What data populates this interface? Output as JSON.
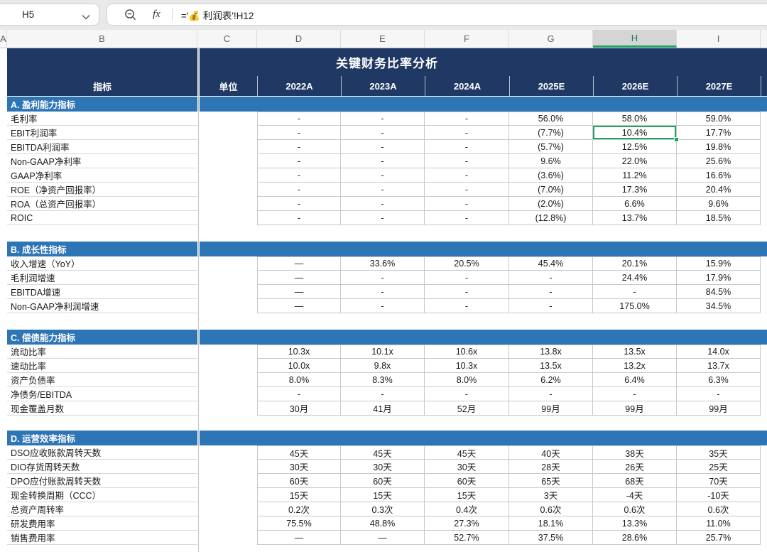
{
  "toolbar": {
    "cell_reference": "H5",
    "fx_label": "fx",
    "formula": "='💰 利润表'!H12"
  },
  "sheet": {
    "column_letters": [
      "A",
      "B",
      "C",
      "D",
      "E",
      "F",
      "G",
      "H",
      "I"
    ],
    "selected_column": "H",
    "title": "关键财务比率分析",
    "header": [
      "指标",
      "单位",
      "2022A",
      "2023A",
      "2024A",
      "2025E",
      "2026E",
      "2027E"
    ],
    "sections": [
      {
        "name": "A. 盈利能力指标",
        "rows": [
          {
            "label": "毛利率",
            "values": [
              "-",
              "-",
              "-",
              "56.0%",
              "58.0%",
              "59.0%"
            ]
          },
          {
            "label": "EBIT利润率",
            "values": [
              "-",
              "-",
              "-",
              "(7.7%)",
              "10.4%",
              "17.7%"
            ]
          },
          {
            "label": "EBITDA利润率",
            "values": [
              "-",
              "-",
              "-",
              "(5.7%)",
              "12.5%",
              "19.8%"
            ]
          },
          {
            "label": "Non-GAAP净利率",
            "values": [
              "-",
              "-",
              "-",
              "9.6%",
              "22.0%",
              "25.6%"
            ]
          },
          {
            "label": "GAAP净利率",
            "values": [
              "-",
              "-",
              "-",
              "(3.6%)",
              "11.2%",
              "16.6%"
            ]
          },
          {
            "label": "ROE（净资产回报率）",
            "values": [
              "-",
              "-",
              "-",
              "(7.0%)",
              "17.3%",
              "20.4%"
            ]
          },
          {
            "label": "ROA（总资产回报率）",
            "values": [
              "-",
              "-",
              "-",
              "(2.0%)",
              "6.6%",
              "9.6%"
            ]
          },
          {
            "label": "ROIC",
            "values": [
              "-",
              "-",
              "-",
              "(12.8%)",
              "13.7%",
              "18.5%"
            ]
          }
        ]
      },
      {
        "name": "B. 成长性指标",
        "rows": [
          {
            "label": "收入增速（YoY）",
            "values": [
              "—",
              "33.6%",
              "20.5%",
              "45.4%",
              "20.1%",
              "15.9%"
            ]
          },
          {
            "label": "毛利润增速",
            "values": [
              "—",
              "-",
              "-",
              "-",
              "24.4%",
              "17.9%"
            ]
          },
          {
            "label": "EBITDA增速",
            "values": [
              "—",
              "-",
              "-",
              "-",
              "-",
              "84.5%"
            ]
          },
          {
            "label": "Non-GAAP净利润增速",
            "values": [
              "—",
              "-",
              "-",
              "-",
              "175.0%",
              "34.5%"
            ]
          }
        ]
      },
      {
        "name": "C. 偿债能力指标",
        "rows": [
          {
            "label": "流动比率",
            "values": [
              "10.3x",
              "10.1x",
              "10.6x",
              "13.8x",
              "13.5x",
              "14.0x"
            ]
          },
          {
            "label": "速动比率",
            "values": [
              "10.0x",
              "9.8x",
              "10.3x",
              "13.5x",
              "13.2x",
              "13.7x"
            ]
          },
          {
            "label": "资产负债率",
            "values": [
              "8.0%",
              "8.3%",
              "8.0%",
              "6.2%",
              "6.4%",
              "6.3%"
            ]
          },
          {
            "label": "净债务/EBITDA",
            "values": [
              "-",
              "-",
              "-",
              "-",
              "-",
              "-"
            ]
          },
          {
            "label": "现金覆盖月数",
            "values": [
              "30月",
              "41月",
              "52月",
              "99月",
              "99月",
              "99月"
            ]
          }
        ]
      },
      {
        "name": "D. 运营效率指标",
        "rows": [
          {
            "label": "DSO应收账款周转天数",
            "values": [
              "45天",
              "45天",
              "45天",
              "40天",
              "38天",
              "35天"
            ]
          },
          {
            "label": "DIO存货周转天数",
            "values": [
              "30天",
              "30天",
              "30天",
              "28天",
              "26天",
              "25天"
            ]
          },
          {
            "label": "DPO应付账款周转天数",
            "values": [
              "60天",
              "60天",
              "60天",
              "65天",
              "68天",
              "70天"
            ]
          },
          {
            "label": "现金转换周期（CCC）",
            "values": [
              "15天",
              "15天",
              "15天",
              "3天",
              "-4天",
              "-10天"
            ]
          },
          {
            "label": "总资产周转率",
            "values": [
              "0.2次",
              "0.3次",
              "0.4次",
              "0.6次",
              "0.6次",
              "0.6次"
            ]
          },
          {
            "label": "研发费用率",
            "values": [
              "75.5%",
              "48.8%",
              "27.3%",
              "18.1%",
              "13.3%",
              "11.0%"
            ]
          },
          {
            "label": "销售费用率",
            "values": [
              "—",
              "—",
              "52.7%",
              "37.5%",
              "28.6%",
              "25.7%"
            ]
          }
        ]
      }
    ],
    "selected_cell": {
      "ref": "H5",
      "section_index": 0,
      "row_index": 1,
      "value_index": 4,
      "value": "10.4%"
    }
  },
  "colors": {
    "navy_header": "#1f3864",
    "section_blue": "#2e75b6",
    "selection_green": "#21a366",
    "grid_line": "#c9c9c9"
  }
}
